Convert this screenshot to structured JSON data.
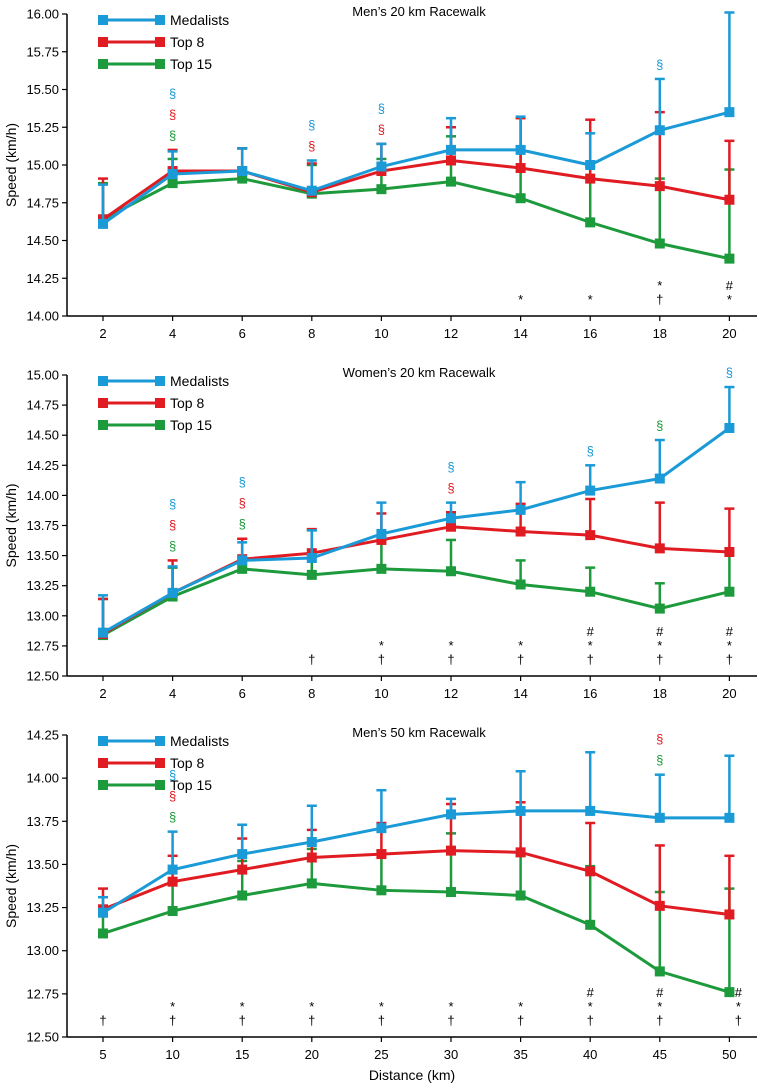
{
  "figure": {
    "xlabel": "Distance (km)"
  },
  "colors": {
    "Medalists": "#1a9ad6",
    "Top 8": "#e01b22",
    "Top 15": "#1d9a3c",
    "axis": "#000000"
  },
  "symbols": {
    "section": "§",
    "star": "*",
    "hash": "#",
    "dagger": "†"
  },
  "chart_data": [
    {
      "type": "line",
      "title": "Men’s 20 km Racewalk",
      "xlabel": "",
      "ylabel": "Speed (km/h)",
      "x": [
        2,
        4,
        6,
        8,
        10,
        12,
        14,
        16,
        18,
        20
      ],
      "x_tick_labels": [
        "2",
        "4",
        "6",
        "8",
        "10",
        "12",
        "14",
        "16",
        "18",
        "20"
      ],
      "ylim": [
        14.0,
        16.0
      ],
      "y_ticks": [
        "14.00",
        "14.25",
        "14.50",
        "14.75",
        "15.00",
        "15.25",
        "15.50",
        "15.75",
        "16.00"
      ],
      "series": [
        {
          "name": "Medalists",
          "values": [
            14.61,
            14.94,
            14.96,
            14.83,
            14.99,
            15.1,
            15.1,
            15.0,
            15.23,
            15.35
          ],
          "errors": [
            0.26,
            0.15,
            0.15,
            0.2,
            0.15,
            0.21,
            0.22,
            0.21,
            0.34,
            0.66
          ]
        },
        {
          "name": "Top 8",
          "values": [
            14.64,
            14.96,
            14.96,
            14.82,
            14.96,
            15.03,
            14.98,
            14.91,
            14.86,
            14.77
          ],
          "errors": [
            0.27,
            0.14,
            0.15,
            0.19,
            0.18,
            0.22,
            0.33,
            0.39,
            0.49,
            0.39
          ]
        },
        {
          "name": "Top 15",
          "values": [
            14.64,
            14.88,
            14.91,
            14.81,
            14.84,
            14.89,
            14.78,
            14.62,
            14.48,
            14.38
          ],
          "errors": [
            0.24,
            0.16,
            0.2,
            0.19,
            0.2,
            0.3,
            0.34,
            0.37,
            0.43,
            0.59
          ]
        }
      ],
      "significance_top": [
        {
          "x": 4,
          "marks": [
            [
              "§",
              "Medalists"
            ],
            [
              "§",
              "Top 8"
            ],
            [
              "§",
              "Top 15"
            ]
          ]
        },
        {
          "x": 8,
          "marks": [
            [
              "§",
              "Medalists"
            ],
            [
              "§",
              "Top 8"
            ]
          ]
        },
        {
          "x": 10,
          "marks": [
            [
              "§",
              "Medalists"
            ],
            [
              "§",
              "Top 8"
            ]
          ]
        },
        {
          "x": 18,
          "marks": [
            [
              "§",
              "Medalists"
            ]
          ]
        }
      ],
      "significance_bottom": [
        {
          "x": 14,
          "marks": [
            "*"
          ]
        },
        {
          "x": 16,
          "marks": [
            "*"
          ]
        },
        {
          "x": 18,
          "marks": [
            "*",
            "†"
          ]
        },
        {
          "x": 20,
          "marks": [
            "#",
            "*"
          ]
        }
      ],
      "legend": [
        "Medalists",
        "Top 8",
        "Top 15"
      ],
      "legend_loc": "top-left"
    },
    {
      "type": "line",
      "title": "Women’s 20 km Racewalk",
      "xlabel": "",
      "ylabel": "Speed (km/h)",
      "x": [
        2,
        4,
        6,
        8,
        10,
        12,
        14,
        16,
        18,
        20
      ],
      "x_tick_labels": [
        "2",
        "4",
        "6",
        "8",
        "10",
        "12",
        "14",
        "16",
        "18",
        "20"
      ],
      "ylim": [
        12.5,
        15.0
      ],
      "y_ticks": [
        "12.50",
        "12.75",
        "13.00",
        "13.25",
        "13.50",
        "13.75",
        "14.00",
        "14.25",
        "14.50",
        "14.75",
        "15.00"
      ],
      "series": [
        {
          "name": "Medalists",
          "values": [
            12.86,
            13.19,
            13.46,
            13.48,
            13.68,
            13.81,
            13.88,
            14.04,
            14.14,
            14.56
          ],
          "errors": [
            0.31,
            0.22,
            0.15,
            0.23,
            0.26,
            0.13,
            0.23,
            0.21,
            0.32,
            0.34
          ]
        },
        {
          "name": "Top 8",
          "values": [
            12.85,
            13.19,
            13.47,
            13.52,
            13.63,
            13.74,
            13.7,
            13.67,
            13.56,
            13.53
          ],
          "errors": [
            0.29,
            0.27,
            0.17,
            0.2,
            0.22,
            0.12,
            0.23,
            0.3,
            0.38,
            0.36
          ]
        },
        {
          "name": "Top 15",
          "values": [
            12.84,
            13.16,
            13.39,
            13.34,
            13.39,
            13.37,
            13.26,
            13.2,
            13.06,
            13.2
          ],
          "errors": [
            0.3,
            0.24,
            0.25,
            0.37,
            0.23,
            0.26,
            0.2,
            0.2,
            0.21,
            0.33
          ]
        }
      ],
      "significance_top": [
        {
          "x": 4,
          "marks": [
            [
              "§",
              "Medalists"
            ],
            [
              "§",
              "Top 8"
            ],
            [
              "§",
              "Top 15"
            ]
          ]
        },
        {
          "x": 6,
          "marks": [
            [
              "§",
              "Medalists"
            ],
            [
              "§",
              "Top 8"
            ],
            [
              "§",
              "Top 15"
            ]
          ]
        },
        {
          "x": 12,
          "marks": [
            [
              "§",
              "Medalists"
            ],
            [
              "§",
              "Top 8"
            ]
          ]
        },
        {
          "x": 16,
          "marks": [
            [
              "§",
              "Medalists"
            ]
          ]
        },
        {
          "x": 18,
          "marks": [
            [
              "§",
              "Top 15"
            ]
          ]
        },
        {
          "x": 20,
          "marks": [
            [
              "§",
              "Medalists"
            ]
          ]
        }
      ],
      "significance_bottom": [
        {
          "x": 8,
          "marks": [
            "†"
          ]
        },
        {
          "x": 10,
          "marks": [
            "*",
            "†"
          ]
        },
        {
          "x": 12,
          "marks": [
            "*",
            "†"
          ]
        },
        {
          "x": 14,
          "marks": [
            "*",
            "†"
          ]
        },
        {
          "x": 16,
          "marks": [
            "#",
            "*",
            "†"
          ]
        },
        {
          "x": 18,
          "marks": [
            "#",
            "*",
            "†"
          ]
        },
        {
          "x": 20,
          "marks": [
            "#",
            "*",
            "†"
          ]
        }
      ],
      "legend": [
        "Medalists",
        "Top 8",
        "Top 15"
      ],
      "legend_loc": "top-left"
    },
    {
      "type": "line",
      "title": "Men’s 50 km Racewalk",
      "xlabel": "Distance (km)",
      "ylabel": "Speed (km/h)",
      "x": [
        5,
        10,
        15,
        20,
        25,
        30,
        35,
        40,
        45,
        50
      ],
      "x_tick_labels": [
        "5",
        "10",
        "15",
        "20",
        "25",
        "30",
        "35",
        "40",
        "45",
        "50"
      ],
      "ylim": [
        12.5,
        14.25
      ],
      "y_ticks": [
        "12.50",
        "12.75",
        "13.00",
        "13.25",
        "13.50",
        "13.75",
        "14.00",
        "14.25"
      ],
      "series": [
        {
          "name": "Medalists",
          "values": [
            13.22,
            13.47,
            13.56,
            13.63,
            13.71,
            13.79,
            13.81,
            13.81,
            13.77,
            13.77
          ],
          "errors": [
            0.09,
            0.22,
            0.17,
            0.21,
            0.22,
            0.09,
            0.23,
            0.34,
            0.25,
            0.36
          ]
        },
        {
          "name": "Top 8",
          "values": [
            13.24,
            13.4,
            13.47,
            13.54,
            13.56,
            13.58,
            13.57,
            13.46,
            13.26,
            13.21
          ],
          "errors": [
            0.12,
            0.15,
            0.18,
            0.16,
            0.18,
            0.27,
            0.29,
            0.28,
            0.35,
            0.34
          ]
        },
        {
          "name": "Top 15",
          "values": [
            13.1,
            13.23,
            13.32,
            13.39,
            13.35,
            13.34,
            13.32,
            13.15,
            12.88,
            12.76
          ],
          "errors": [
            0.15,
            0.17,
            0.2,
            0.2,
            0.23,
            0.34,
            0.23,
            0.34,
            0.46,
            0.6
          ]
        }
      ],
      "significance_top": [
        {
          "x": 10,
          "marks": [
            [
              "§",
              "Medalists"
            ],
            [
              "§",
              "Top 8"
            ],
            [
              "§",
              "Top 15"
            ]
          ]
        },
        {
          "x": 45,
          "marks": [
            [
              "§",
              "Top 8"
            ],
            [
              "§",
              "Top 15"
            ]
          ]
        }
      ],
      "significance_bottom": [
        {
          "x": 5,
          "marks": [
            "†"
          ]
        },
        {
          "x": 10,
          "marks": [
            "*",
            "†"
          ]
        },
        {
          "x": 15,
          "marks": [
            "*",
            "†"
          ]
        },
        {
          "x": 20,
          "marks": [
            "*",
            "†"
          ]
        },
        {
          "x": 25,
          "marks": [
            "*",
            "†"
          ]
        },
        {
          "x": 30,
          "marks": [
            "*",
            "†"
          ]
        },
        {
          "x": 35,
          "marks": [
            "*",
            "†"
          ]
        },
        {
          "x": 40,
          "marks": [
            "#",
            "*",
            "†"
          ]
        },
        {
          "x": 45,
          "marks": [
            "#",
            "*",
            "†"
          ]
        },
        {
          "x": 50,
          "marks": [
            "#",
            "*",
            "†"
          ]
        }
      ],
      "legend": [
        "Medalists",
        "Top 8",
        "Top 15"
      ],
      "legend_loc": "top-left"
    }
  ]
}
